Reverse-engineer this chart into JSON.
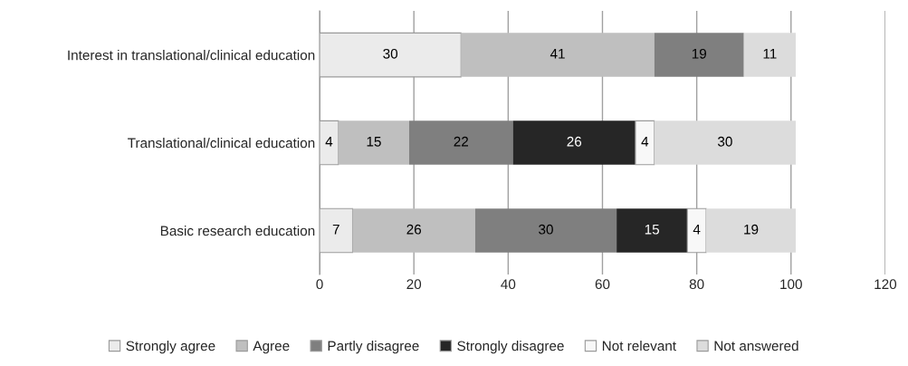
{
  "chart_data": {
    "type": "bar",
    "orientation": "horizontal",
    "stacked": true,
    "data_labels": true,
    "categories": [
      "Interest in translational/clinical education",
      "Translational/clinical education",
      "Basic research education"
    ],
    "series": [
      {
        "name": "Strongly agree",
        "color": "#ebebeb",
        "values": [
          30,
          4,
          7
        ]
      },
      {
        "name": "Agree",
        "color": "#bfbfbf",
        "values": [
          41,
          15,
          26
        ]
      },
      {
        "name": "Partly disagree",
        "color": "#7f7f7f",
        "values": [
          19,
          22,
          30
        ]
      },
      {
        "name": "Strongly disagree",
        "color": "#262626",
        "values": [
          null,
          26,
          15
        ]
      },
      {
        "name": "Not relevant",
        "color": "#f8f8f8",
        "values": [
          null,
          4,
          4
        ]
      },
      {
        "name": "Not answered",
        "color": "#dcdcdc",
        "values": [
          11,
          30,
          19
        ]
      }
    ],
    "xlim": [
      0,
      120
    ],
    "xticks": [
      0,
      20,
      40,
      60,
      80,
      100,
      120
    ],
    "grid": "x",
    "legend": "bottom"
  }
}
